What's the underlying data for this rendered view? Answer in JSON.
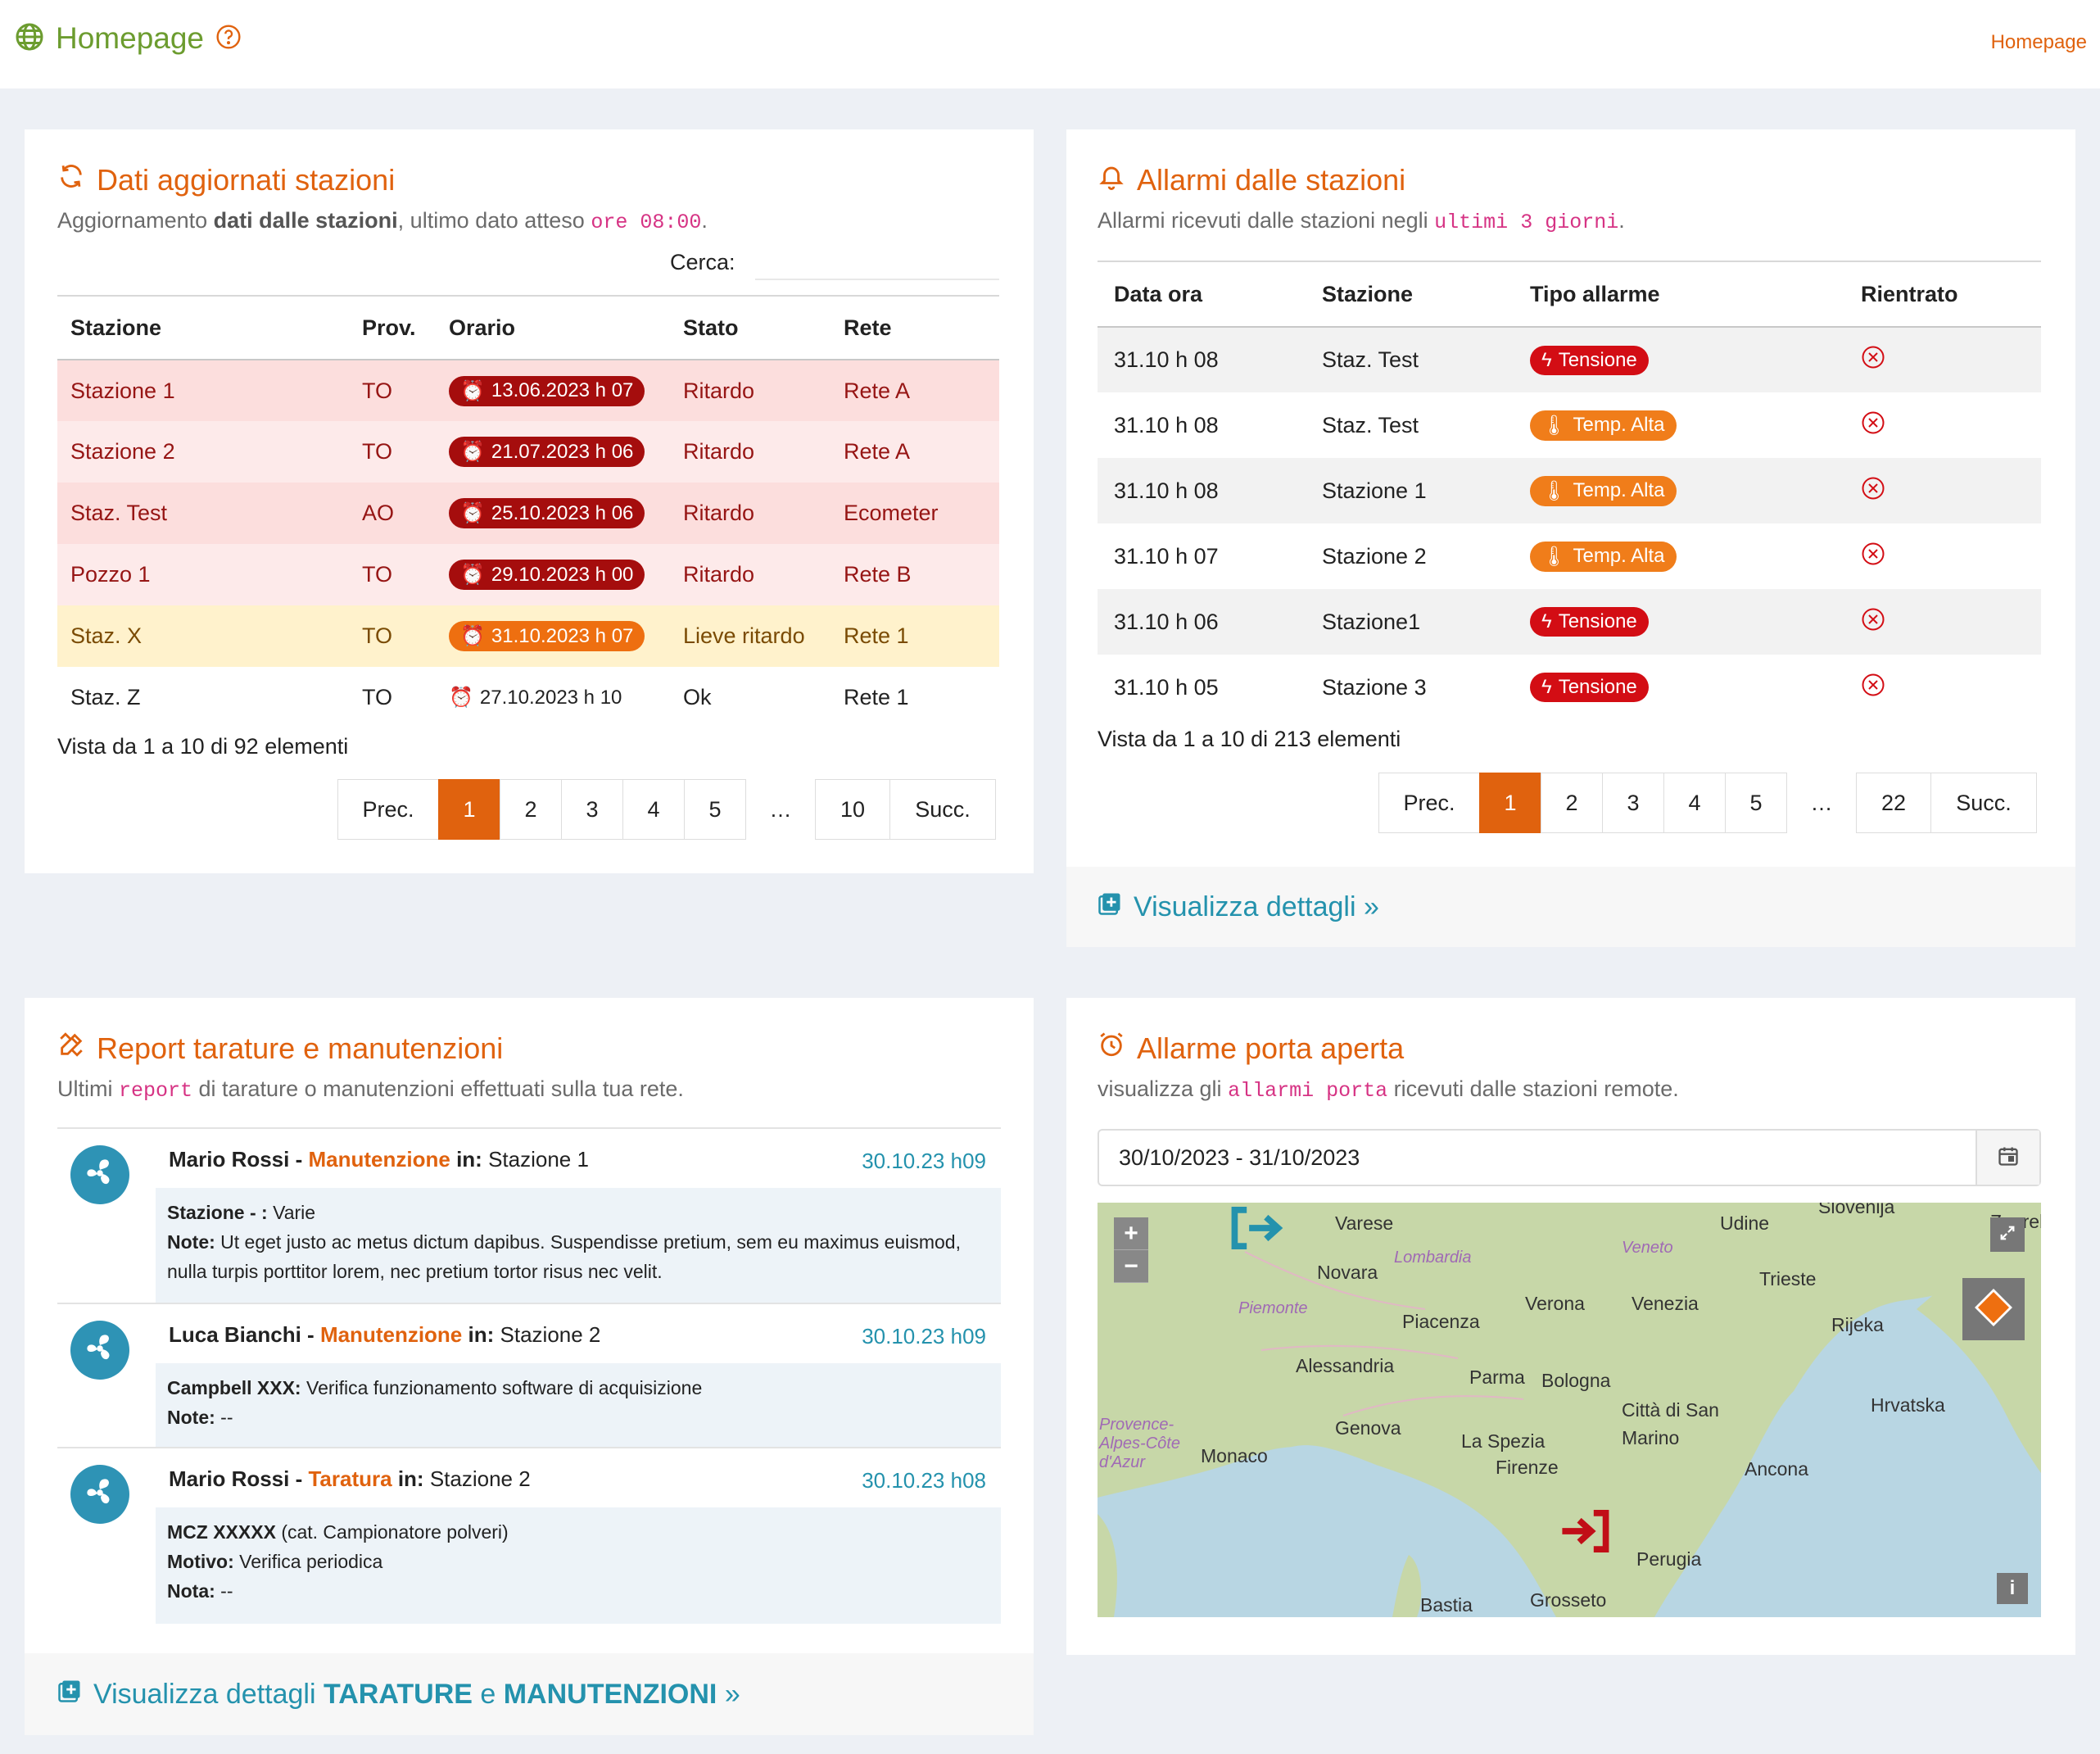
{
  "topbar": {
    "title": "Homepage",
    "breadcrumb": "Homepage"
  },
  "stations_panel": {
    "title": "Dati aggiornati stazioni",
    "subtitle_pre": "Aggiornamento ",
    "subtitle_bold": "dati dalle stazioni",
    "subtitle_mid": ", ultimo dato atteso ",
    "subtitle_code": "ore 08:00",
    "subtitle_end": ".",
    "search_label": "Cerca:",
    "columns": [
      "Stazione",
      "Prov.",
      "Orario",
      "Stato",
      "Rete"
    ],
    "rows": [
      {
        "station": "Stazione 1",
        "prov": "TO",
        "time": "13.06.2023 h 07",
        "state": "Ritardo",
        "net": "Rete A"
      },
      {
        "station": "Stazione 2",
        "prov": "TO",
        "time": "21.07.2023 h 06",
        "state": "Ritardo",
        "net": "Rete A"
      },
      {
        "station": "Staz. Test",
        "prov": "AO",
        "time": "25.10.2023 h 06",
        "state": "Ritardo",
        "net": "Ecometer"
      },
      {
        "station": "Pozzo 1",
        "prov": "TO",
        "time": "29.10.2023 h 00",
        "state": "Ritardo",
        "net": "Rete B"
      },
      {
        "station": "Staz. X",
        "prov": "TO",
        "time": "31.10.2023 h 07",
        "state": "Lieve ritardo",
        "net": "Rete 1"
      },
      {
        "station": "Staz. Z",
        "prov": "TO",
        "time": "27.10.2023 h 10",
        "state": "Ok",
        "net": "Rete 1"
      }
    ],
    "info": "Vista da 1 a 10 di 92 elementi",
    "pager": [
      "Prec.",
      "1",
      "2",
      "3",
      "4",
      "5",
      "…",
      "10",
      "Succ."
    ]
  },
  "alarms_panel": {
    "title": "Allarmi dalle stazioni",
    "subtitle_pre": "Allarmi ricevuti dalle stazioni negli ",
    "subtitle_code": "ultimi 3 giorni",
    "subtitle_end": ".",
    "columns": [
      "Data ora",
      "Stazione",
      "Tipo allarme",
      "Rientrato"
    ],
    "rows": [
      {
        "date": "31.10 h 08",
        "station": "Staz. Test",
        "type": "Tensione"
      },
      {
        "date": "31.10 h 08",
        "station": "Staz. Test",
        "type": "Temp. Alta"
      },
      {
        "date": "31.10 h 08",
        "station": "Stazione 1",
        "type": "Temp. Alta"
      },
      {
        "date": "31.10 h 07",
        "station": "Stazione 2",
        "type": "Temp. Alta"
      },
      {
        "date": "31.10 h 06",
        "station": "Stazione1",
        "type": "Tensione"
      },
      {
        "date": "31.10 h 05",
        "station": "Stazione 3",
        "type": "Tensione"
      }
    ],
    "info": "Vista da 1 a 10 di 213 elementi",
    "pager": [
      "Prec.",
      "1",
      "2",
      "3",
      "4",
      "5",
      "…",
      "22",
      "Succ."
    ],
    "details_link": "Visualizza dettagli »"
  },
  "reports_panel": {
    "title": "Report tarature e manutenzioni",
    "subtitle_pre": "Ultimi ",
    "subtitle_code": "report",
    "subtitle_end": " di tarature o manutenzioni effettuati sulla tua rete.",
    "items": [
      {
        "user": "Mario Rossi",
        "kind": "Manutenzione",
        "in_label": "in:",
        "place": "Stazione 1",
        "date": "30.10.23 h09",
        "lines": [
          {
            "k": "Stazione - :",
            "v": "Varie"
          },
          {
            "k": "Note:",
            "v": "Ut eget justo ac metus dictum dapibus. Suspendisse pretium, sem eu maximus euismod, nulla turpis porttitor lorem, nec pretium tortor risus nec velit."
          }
        ]
      },
      {
        "user": "Luca Bianchi",
        "kind": "Manutenzione",
        "in_label": "in:",
        "place": "Stazione 2",
        "date": "30.10.23 h09",
        "lines": [
          {
            "k": "Campbell XXX:",
            "v": "Verifica funzionamento software di acquisizione"
          },
          {
            "k": "Note:",
            "v": "--"
          }
        ]
      },
      {
        "user": "Mario Rossi",
        "kind": "Taratura",
        "in_label": "in:",
        "place": "Stazione 2",
        "date": "30.10.23 h08",
        "lines": [
          {
            "k": "MCZ XXXXX",
            "v": "(cat. Campionatore polveri)"
          },
          {
            "k": "Motivo:",
            "v": "Verifica periodica"
          },
          {
            "k": "Nota:",
            "v": "--"
          }
        ]
      }
    ],
    "details_pre": "Visualizza dettagli ",
    "details_b1": "TARATURE",
    "details_mid": " e ",
    "details_b2": "MANUTENZIONI",
    "details_end": " »"
  },
  "door_panel": {
    "title": "Allarme porta aperta",
    "subtitle_pre": "visualizza gli ",
    "subtitle_code": "allarmi porta",
    "subtitle_end": " ricevuti dalle stazioni remote.",
    "date_range": "30/10/2023 - 31/10/2023",
    "map_labels": [
      "Varese",
      "Udine",
      "Slovenija",
      "Zagreb",
      "Novara",
      "Lombardia",
      "Veneto",
      "Trieste",
      "Piemonte",
      "Verona",
      "Venezia",
      "Rijeka",
      "Piacenza",
      "Alessandria",
      "Parma",
      "Bologna",
      "Hrvatska",
      "Genova",
      "La Spezia",
      "Città di San Marino",
      "Provence-Alpes-Côte d'Azur",
      "Monaco",
      "Firenze",
      "Ancona",
      "Perugia",
      "Bastia",
      "Grosseto"
    ]
  }
}
